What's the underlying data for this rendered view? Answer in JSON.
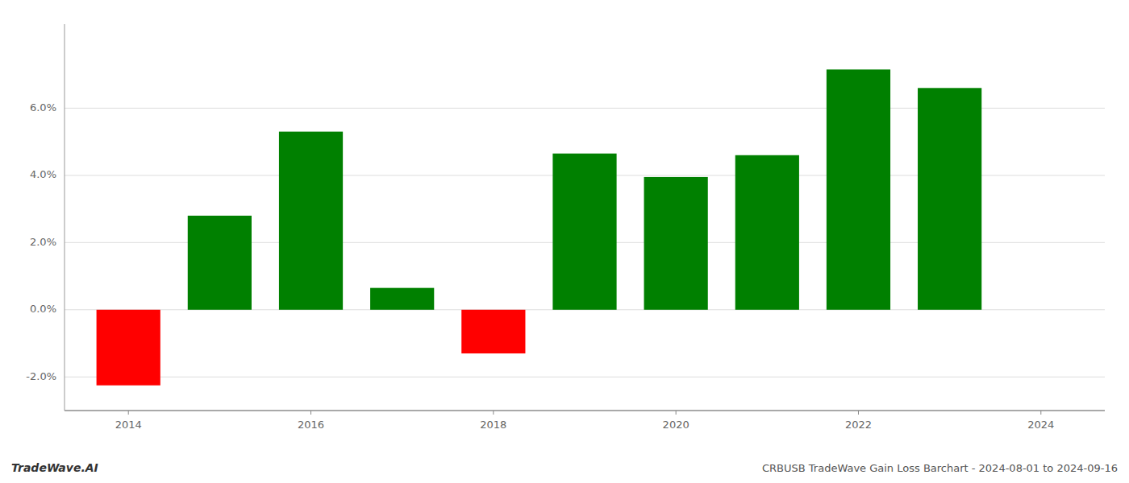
{
  "chart_data": {
    "type": "bar",
    "x": [
      2014,
      2015,
      2016,
      2017,
      2018,
      2019,
      2020,
      2021,
      2022,
      2023
    ],
    "values": [
      -0.0225,
      0.028,
      0.053,
      0.0065,
      -0.013,
      0.0465,
      0.0395,
      0.046,
      0.0715,
      0.066
    ],
    "colors": [
      "#ff0000",
      "#008000",
      "#008000",
      "#008000",
      "#ff0000",
      "#008000",
      "#008000",
      "#008000",
      "#008000",
      "#008000"
    ],
    "xlim": [
      2013.3,
      2024.7
    ],
    "xticks": [
      2014,
      2016,
      2018,
      2020,
      2022,
      2024
    ],
    "ylim": [
      -0.03,
      0.085
    ],
    "yticks": [
      {
        "value": -0.02,
        "label": "-2.0%"
      },
      {
        "value": 0.0,
        "label": "0.0%"
      },
      {
        "value": 0.02,
        "label": "2.0%"
      },
      {
        "value": 0.04,
        "label": "4.0%"
      },
      {
        "value": 0.06,
        "label": "6.0%"
      }
    ],
    "grid": true,
    "annotations": [
      "TradeWave.AI",
      "CRBUSB TradeWave Gain Loss Barchart - 2024-08-01 to 2024-09-16"
    ]
  }
}
